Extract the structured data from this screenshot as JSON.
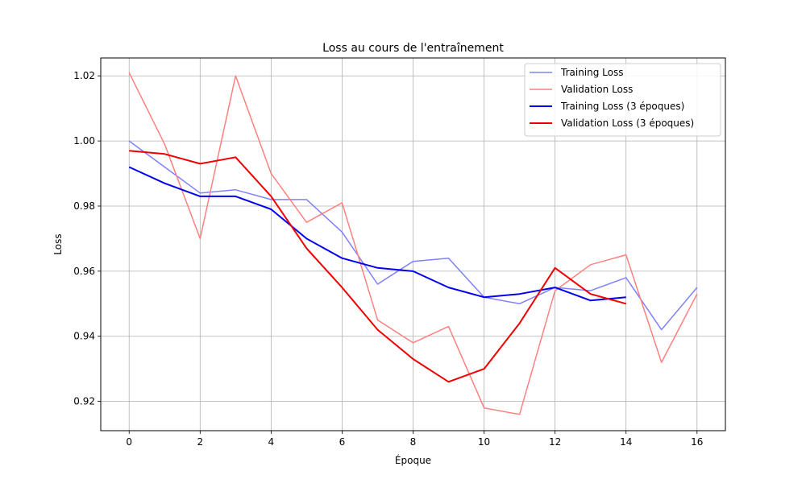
{
  "chart_data": {
    "type": "line",
    "title": "Loss au cours de l'entraînement",
    "xlabel": "Époque",
    "ylabel": "Loss",
    "xlim": [
      -0.8,
      16.8
    ],
    "ylim": [
      0.911,
      1.0255
    ],
    "xticks": [
      0,
      2,
      4,
      6,
      8,
      10,
      12,
      14,
      16
    ],
    "yticks": [
      0.92,
      0.94,
      0.96,
      0.98,
      1.0,
      1.02
    ],
    "ytick_labels": [
      "0.92",
      "0.94",
      "0.96",
      "0.98",
      "1.00",
      "1.02"
    ],
    "grid": true,
    "legend_position": "top-right",
    "series": [
      {
        "name": "Training Loss",
        "color": "#8080ff",
        "style": "thin",
        "x": [
          0,
          1,
          2,
          3,
          4,
          5,
          6,
          7,
          8,
          9,
          10,
          11,
          12,
          13,
          14,
          15,
          16
        ],
        "values": [
          1.0,
          0.992,
          0.984,
          0.985,
          0.982,
          0.982,
          0.972,
          0.956,
          0.963,
          0.964,
          0.952,
          0.95,
          0.955,
          0.954,
          0.958,
          0.942,
          0.955
        ]
      },
      {
        "name": "Validation Loss",
        "color": "#ff8080",
        "style": "thin",
        "x": [
          0,
          1,
          2,
          3,
          4,
          5,
          6,
          7,
          8,
          9,
          10,
          11,
          12,
          13,
          14,
          15,
          16
        ],
        "values": [
          1.021,
          0.999,
          0.97,
          1.02,
          0.99,
          0.975,
          0.981,
          0.945,
          0.938,
          0.943,
          0.918,
          0.916,
          0.954,
          0.962,
          0.965,
          0.932,
          0.953
        ]
      },
      {
        "name": "Training Loss (3 époques)",
        "color": "#0000ee",
        "style": "thick",
        "x": [
          0,
          1,
          2,
          3,
          4,
          5,
          6,
          7,
          8,
          9,
          10,
          11,
          12,
          13,
          14
        ],
        "values": [
          0.992,
          0.987,
          0.983,
          0.983,
          0.979,
          0.97,
          0.964,
          0.961,
          0.96,
          0.955,
          0.952,
          0.953,
          0.955,
          0.951,
          0.952
        ]
      },
      {
        "name": "Validation Loss (3 époques)",
        "color": "#ee0000",
        "style": "thick",
        "x": [
          0,
          1,
          2,
          3,
          4,
          5,
          6,
          7,
          8,
          9,
          10,
          11,
          12,
          13,
          14
        ],
        "values": [
          0.997,
          0.996,
          0.993,
          0.995,
          0.983,
          0.967,
          0.955,
          0.942,
          0.933,
          0.926,
          0.93,
          0.944,
          0.961,
          0.953,
          0.95
        ]
      }
    ]
  }
}
